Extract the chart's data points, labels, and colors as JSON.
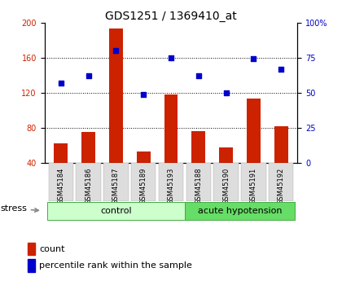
{
  "title": "GDS1251 / 1369410_at",
  "samples": [
    "GSM45184",
    "GSM45186",
    "GSM45187",
    "GSM45189",
    "GSM45193",
    "GSM45188",
    "GSM45190",
    "GSM45191",
    "GSM45192"
  ],
  "count_values": [
    62,
    75,
    193,
    53,
    118,
    76,
    58,
    113,
    82
  ],
  "percentile_values": [
    57,
    62,
    80,
    49,
    75,
    62,
    50,
    74,
    67
  ],
  "ylim_left": [
    40,
    200
  ],
  "ylim_right": [
    0,
    100
  ],
  "yticks_left": [
    40,
    80,
    120,
    160,
    200
  ],
  "yticks_right": [
    0,
    25,
    50,
    75,
    100
  ],
  "ytick_labels_right": [
    "0",
    "25",
    "50",
    "75",
    "100%"
  ],
  "hlines": [
    80,
    120,
    160
  ],
  "bar_color": "#cc2200",
  "dot_color": "#0000cc",
  "control_color": "#ccffcc",
  "hypotension_color": "#66dd66",
  "group_labels": [
    "control",
    "acute hypotension"
  ],
  "control_count": 5,
  "hypotension_count": 4,
  "legend_count": "count",
  "legend_pct": "percentile rank within the sample",
  "stress_label": "stress",
  "tick_label_color_left": "#cc2200",
  "tick_label_color_right": "#0000cc",
  "bar_width": 0.5,
  "label_fontsize": 7,
  "title_fontsize": 10
}
